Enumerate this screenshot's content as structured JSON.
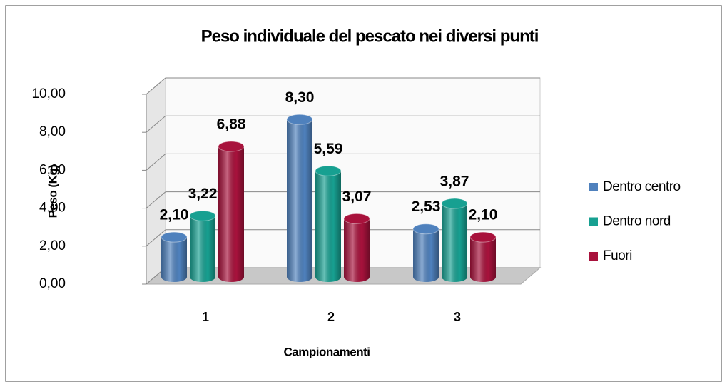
{
  "chart_data": {
    "type": "bar3d",
    "title": "Peso individuale del pescato nei diversi punti",
    "x_label": "Campionamenti",
    "y_label": "Peso (Kg)",
    "categories": [
      "1",
      "2",
      "3"
    ],
    "series": [
      {
        "name": "Dentro centro",
        "color": "#4f81bd",
        "values": [
          2.1,
          8.3,
          2.53
        ],
        "value_labels": [
          "2,10",
          "8,30",
          "2,53"
        ]
      },
      {
        "name": "Dentro nord",
        "color": "#17a091",
        "values": [
          3.22,
          5.59,
          3.87
        ],
        "value_labels": [
          "3,22",
          "5,59",
          "3,87"
        ]
      },
      {
        "name": "Fuori",
        "color": "#a8123c",
        "values": [
          6.88,
          3.07,
          2.1
        ],
        "value_labels": [
          "6,88",
          "3,07",
          "2,10"
        ]
      }
    ],
    "ylim": [
      0,
      10
    ],
    "yticks": [
      {
        "value": 0,
        "label": "0,00"
      },
      {
        "value": 2,
        "label": "2,00"
      },
      {
        "value": 4,
        "label": "4,00"
      },
      {
        "value": 6,
        "label": "6,00"
      },
      {
        "value": 8,
        "label": "8,00"
      },
      {
        "value": 10,
        "label": "10,00"
      }
    ],
    "grid": true,
    "legend": "right"
  }
}
